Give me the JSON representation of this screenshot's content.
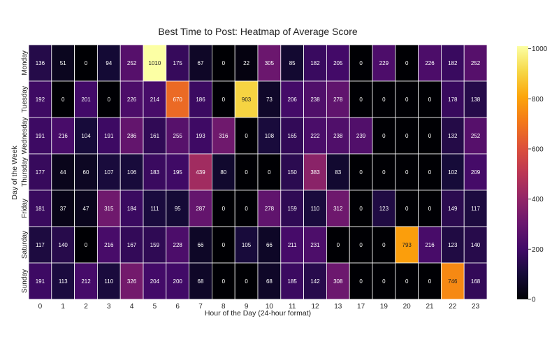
{
  "chart_data": {
    "type": "heatmap",
    "title": "Best Time to Post: Heatmap of Average Score",
    "xlabel": "Hour of the Day (24-hour format)",
    "ylabel": "Day of the Week",
    "x_categories": [
      "0",
      "1",
      "2",
      "3",
      "4",
      "5",
      "6",
      "7",
      "8",
      "9",
      "10",
      "11",
      "12",
      "13",
      "17",
      "19",
      "20",
      "21",
      "22",
      "23"
    ],
    "y_categories": [
      "Monday",
      "Tuesday",
      "Wednesday",
      "Thursday",
      "Friday",
      "Saturday",
      "Sunday"
    ],
    "values": [
      [
        136,
        51,
        0,
        94,
        252,
        1010,
        175,
        67,
        0,
        22,
        305,
        85,
        182,
        205,
        0,
        229,
        0,
        226,
        182,
        252
      ],
      [
        192,
        0,
        201,
        0,
        226,
        214,
        670,
        186,
        0,
        903,
        73,
        206,
        238,
        278,
        0,
        0,
        0,
        0,
        178,
        138
      ],
      [
        191,
        216,
        104,
        191,
        286,
        161,
        255,
        193,
        316,
        0,
        108,
        165,
        222,
        238,
        239,
        0,
        0,
        0,
        132,
        252
      ],
      [
        177,
        44,
        60,
        107,
        106,
        183,
        195,
        439,
        80,
        0,
        0,
        150,
        383,
        83,
        0,
        0,
        0,
        0,
        102,
        209
      ],
      [
        181,
        37,
        47,
        315,
        184,
        111,
        95,
        287,
        0,
        0,
        278,
        159,
        110,
        312,
        0,
        123,
        0,
        0,
        149,
        117
      ],
      [
        117,
        140,
        0,
        216,
        167,
        159,
        228,
        66,
        0,
        105,
        66,
        211,
        231,
        0,
        0,
        0,
        793,
        216,
        123,
        140
      ],
      [
        191,
        113,
        212,
        110,
        326,
        204,
        200,
        68,
        0,
        0,
        68,
        185,
        142,
        308,
        0,
        0,
        0,
        0,
        746,
        168
      ]
    ],
    "colorscale": "inferno",
    "zlim": [
      0,
      1010
    ],
    "colorbar_ticks": [
      0,
      200,
      400,
      600,
      800,
      1000
    ],
    "grid": false,
    "colorbar_placement": "right"
  }
}
